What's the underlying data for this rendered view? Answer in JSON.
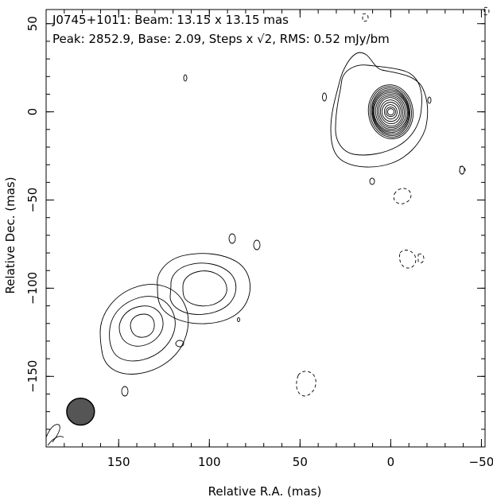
{
  "chart_data": {
    "type": "contour",
    "header": {
      "line1": "J0745+1011: Beam: 13.15 x 13.15 mas",
      "line2": "Peak: 2852.9, Base: 2.09, Steps x √2, RMS: 0.52 mJy/bm"
    },
    "xlabel": "Relative R.A. (mas)",
    "ylabel": "Relative Dec. (mas)",
    "xlim": [
      190,
      -52
    ],
    "ylim": [
      -190,
      58
    ],
    "x_ticks": [
      150,
      100,
      50,
      0,
      -50
    ],
    "y_ticks": [
      50,
      0,
      -50,
      -100,
      -150
    ],
    "x_tick_labels": [
      "150",
      "100",
      "50",
      "0",
      "−50"
    ],
    "y_tick_labels": [
      "50",
      "0",
      "−50",
      "−100",
      "−150"
    ],
    "x_minor_step": 10,
    "y_minor_step": 10,
    "peak": 2852.9,
    "base": 2.09,
    "step_factor": "x sqrt(2)",
    "rms": 0.52,
    "units": "mJy/bm",
    "beam": {
      "major": 13.15,
      "minor": 13.15,
      "center_x": 171,
      "center_y": -170,
      "color": "#555555"
    },
    "components": [
      {
        "name": "core",
        "center_x": 0,
        "center_y": 0,
        "levels": 14,
        "contours": [
          {
            "rx": 4,
            "ry": 4
          },
          {
            "rx": 6,
            "ry": 6
          },
          {
            "rx": 8,
            "ry": 9
          },
          {
            "rx": 11,
            "ry": 12
          },
          {
            "rx": 13,
            "ry": 15
          },
          {
            "rx": 15,
            "ry": 18
          },
          {
            "rx": 17,
            "ry": 20
          },
          {
            "rx": 19,
            "ry": 22
          },
          {
            "rx": 21,
            "ry": 24
          },
          {
            "rx": 22,
            "ry": 26
          },
          {
            "rx": 23,
            "ry": 28
          },
          {
            "rx": 24,
            "ry": 30
          },
          {
            "rx": 26,
            "ry": 32
          },
          {
            "rx": 28,
            "ry": 34
          }
        ]
      },
      {
        "name": "jet-knot-inner",
        "center_x": 110,
        "center_y": -95,
        "levels": 3
      },
      {
        "name": "jet-knot-outer",
        "center_x": 140,
        "center_y": -130,
        "levels": 4
      }
    ],
    "contour_color": "#000000",
    "negative_contour_style": "dashed"
  }
}
